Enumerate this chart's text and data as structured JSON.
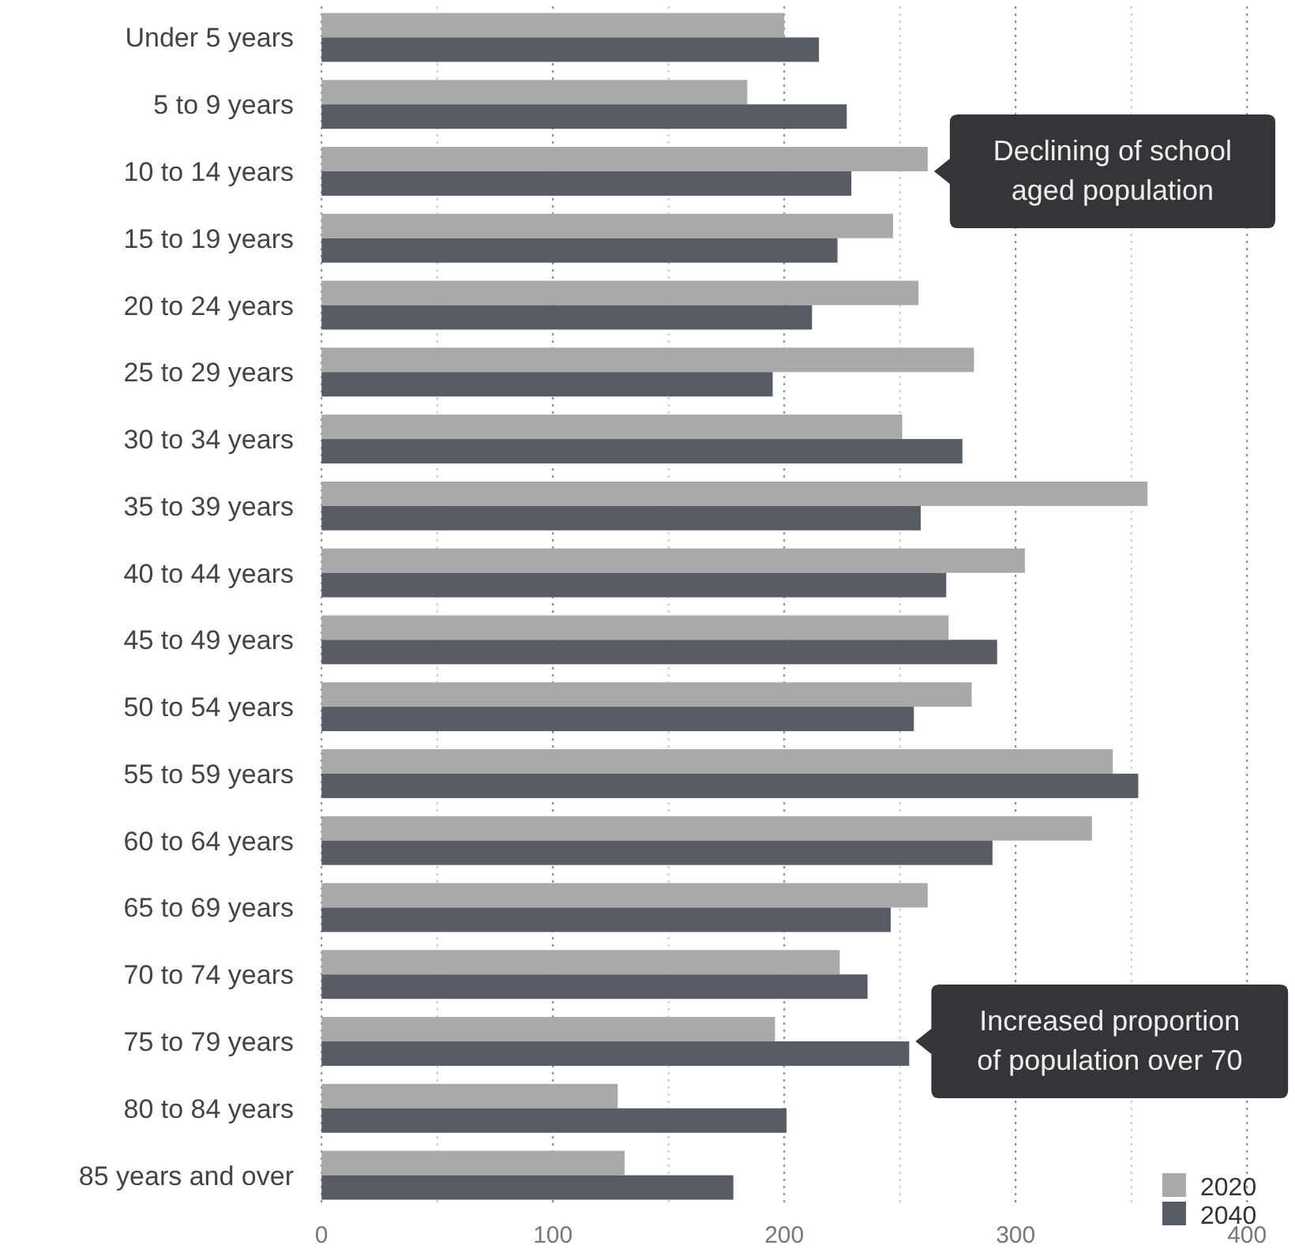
{
  "chart_data": {
    "type": "bar",
    "orientation": "horizontal",
    "categories": [
      "Under 5 years",
      "5 to 9 years",
      "10 to 14 years",
      "15 to 19 years",
      "20 to 24 years",
      "25 to 29 years",
      "30 to 34 years",
      "35 to 39 years",
      "40 to 44 years",
      "45 to 49 years",
      "50 to 54 years",
      "55 to 59 years",
      "60 to 64 years",
      "65 to 69 years",
      "70 to 74 years",
      "75 to 79 years",
      "80 to 84 years",
      "85 years and over"
    ],
    "series": [
      {
        "name": "2020",
        "color": "#a8aaaa",
        "values": [
          200,
          184,
          262,
          247,
          258,
          282,
          251,
          357,
          304,
          271,
          281,
          342,
          333,
          262,
          224,
          196,
          128,
          131
        ]
      },
      {
        "name": "2040",
        "color": "#575c65",
        "values": [
          215,
          227,
          229,
          223,
          212,
          195,
          277,
          259,
          270,
          292,
          256,
          353,
          290,
          246,
          236,
          254,
          201,
          178
        ]
      }
    ],
    "xlim": [
      0,
      400
    ],
    "xticks": [
      0,
      {
        "value": 50,
        "label": null
      },
      100,
      {
        "value": 150,
        "label": null
      },
      200,
      {
        "value": 250,
        "label": null
      },
      300,
      {
        "value": 350,
        "label": null
      },
      400
    ],
    "grid": "x",
    "legend": "bottom right",
    "annotations": [
      {
        "text": "Declining of school\naged population",
        "x": 262,
        "y": "10 to 14 years"
      },
      {
        "text": "Increased proportion\nof population over 70",
        "x": 254,
        "y": "75 to 79 years"
      }
    ]
  }
}
